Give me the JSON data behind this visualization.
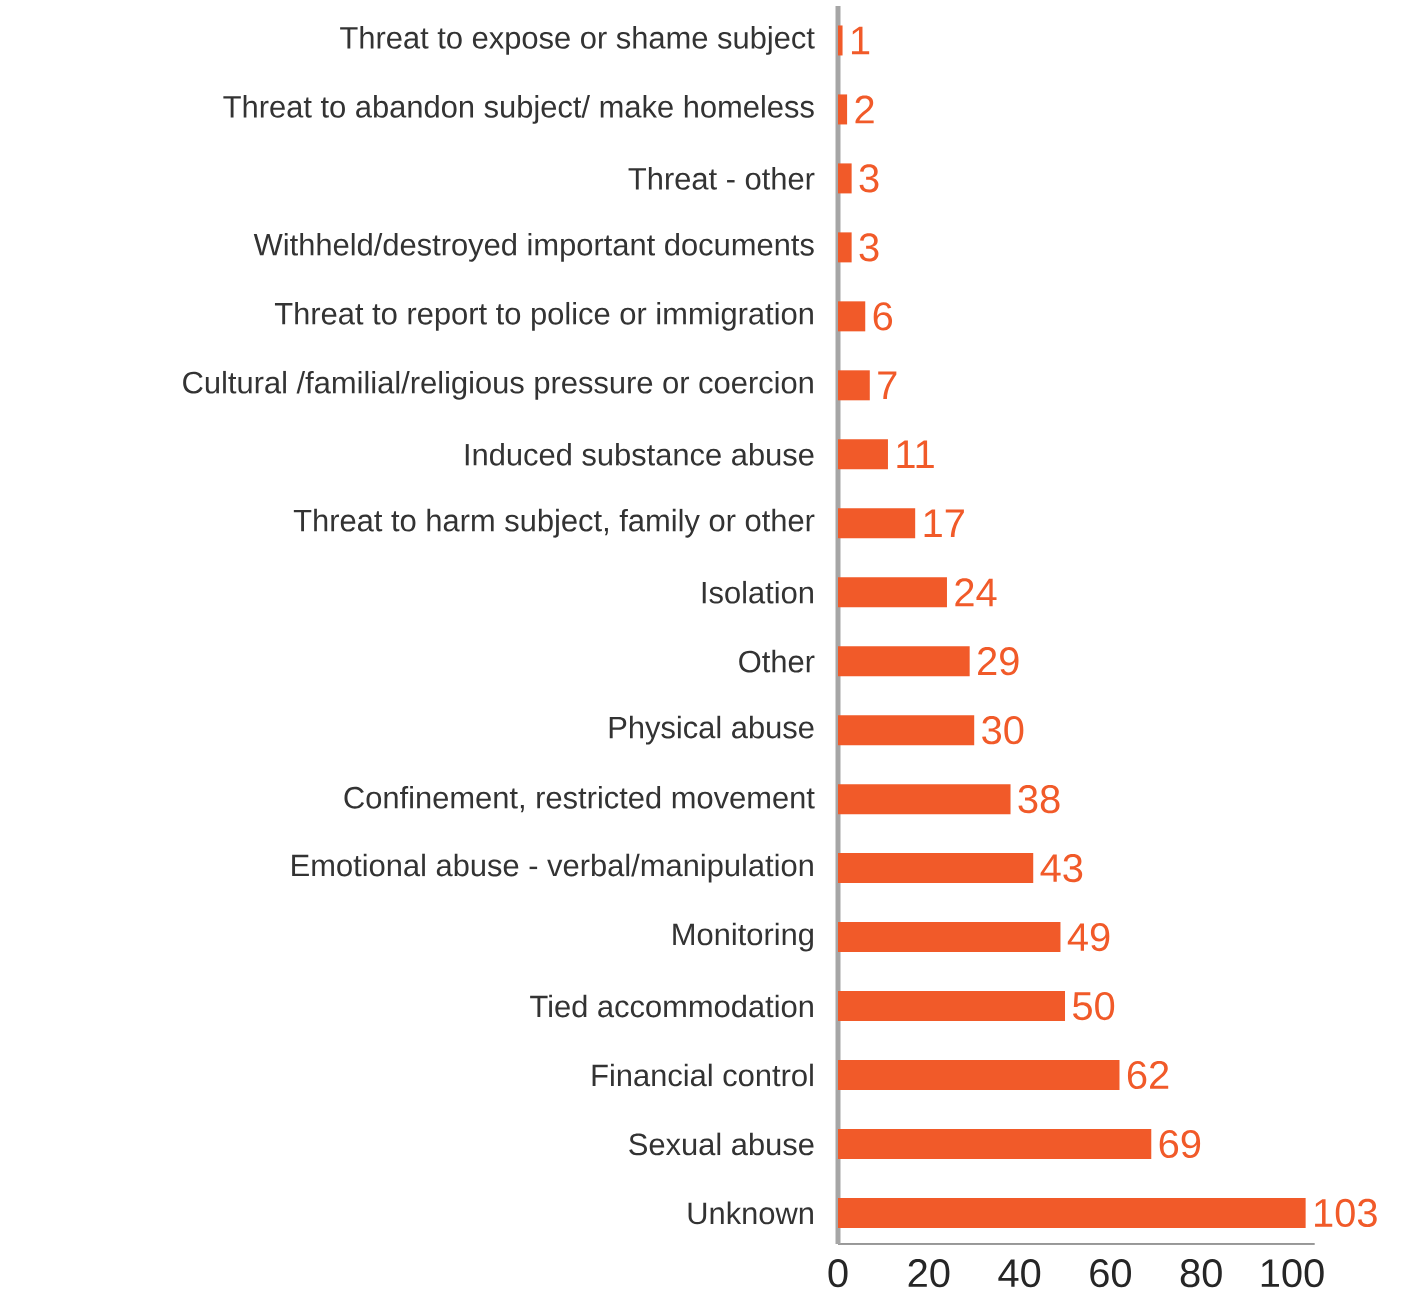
{
  "chart_data": {
    "type": "bar",
    "orientation": "horizontal",
    "categories": [
      "Threat to expose or shame subject",
      "Threat to abandon subject/ make homeless",
      "Threat - other",
      "Withheld/destroyed important documents",
      "Threat to report to police or immigration",
      "Cultural /familial/religious pressure or coercion",
      "Induced substance abuse",
      "Threat to harm subject, family or other",
      "Isolation",
      "Other",
      "Physical abuse",
      "Confinement, restricted movement",
      "Emotional abuse - verbal/manipulation",
      "Monitoring",
      "Tied accommodation",
      "Financial control",
      "Sexual abuse",
      "Unknown"
    ],
    "values": [
      1,
      2,
      3,
      3,
      6,
      7,
      11,
      17,
      24,
      29,
      30,
      38,
      43,
      49,
      50,
      62,
      69,
      103
    ],
    "color": "#f15a29",
    "data_labels": true,
    "xlim": [
      0,
      105
    ],
    "xticks": [
      0,
      20,
      40,
      60,
      80,
      100
    ]
  }
}
